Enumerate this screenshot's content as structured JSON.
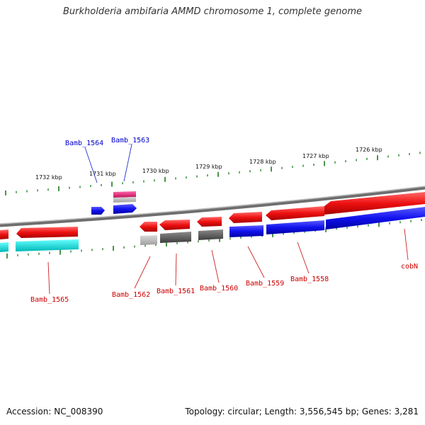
{
  "title": "Burkholderia ambifaria AMMD chromosome 1, complete genome",
  "footer": {
    "accession": "Accession: NC_008390",
    "summary": "Topology: circular; Length: 3,556,545 bp; Genes: 3,281"
  },
  "colors": {
    "backbone": "#8a8a8a",
    "tick": "#1a7a1a",
    "forward_gene": "#ee1111",
    "reverse_gene": "#1111ee",
    "rna": "#e0207a",
    "pseudo": "#5a5a5a",
    "cyan_track": "#00dddd",
    "label_forward": "#0000cc",
    "label_reverse": "#cc0000"
  },
  "scale_labels": [
    "1732 kbp",
    "1731 kbp",
    "1730 kbp",
    "1729 kbp",
    "1728 kbp",
    "1727 kbp",
    "1726 kbp"
  ],
  "gene_labels": {
    "top": [
      "Bamb_1564",
      "Bamb_1563"
    ],
    "bottom": [
      "Bamb_1565",
      "Bamb_1562",
      "Bamb_1561",
      "Bamb_1560",
      "Bamb_1559",
      "Bamb_1558",
      "cobN"
    ]
  }
}
